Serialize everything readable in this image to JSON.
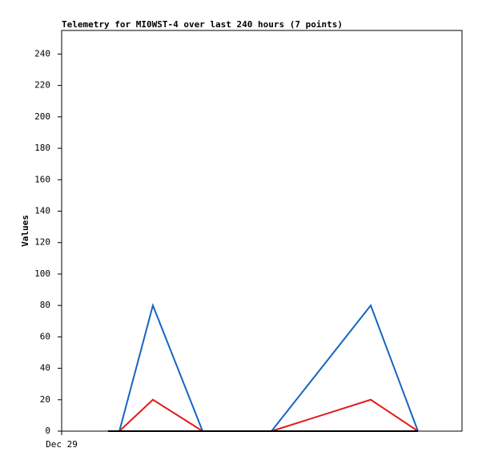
{
  "chart_data": {
    "type": "line",
    "title": "Telemetry for MI0WST-4 over last 240 hours (7 points)",
    "y_label": "Values",
    "x": [
      27.8,
      34.6,
      54.7,
      84.5,
      125.8,
      185.3,
      213.6
    ],
    "xlim": [
      0,
      240
    ],
    "xticks": [
      {
        "value": 0,
        "label": "Dec 29"
      }
    ],
    "ylim": [
      0,
      255
    ],
    "yticks": [
      0,
      20,
      40,
      60,
      80,
      100,
      120,
      140,
      160,
      180,
      200,
      220,
      240
    ],
    "series": [
      {
        "color": "#1565c0",
        "values": [
          null,
          0,
          80,
          0,
          0,
          80,
          0
        ]
      },
      {
        "color": "#e01b1b",
        "values": [
          null,
          0,
          20,
          0,
          0,
          20,
          0
        ]
      },
      {
        "color": "#000000",
        "values": [
          0,
          0,
          0,
          0,
          0,
          0,
          0
        ]
      }
    ]
  }
}
